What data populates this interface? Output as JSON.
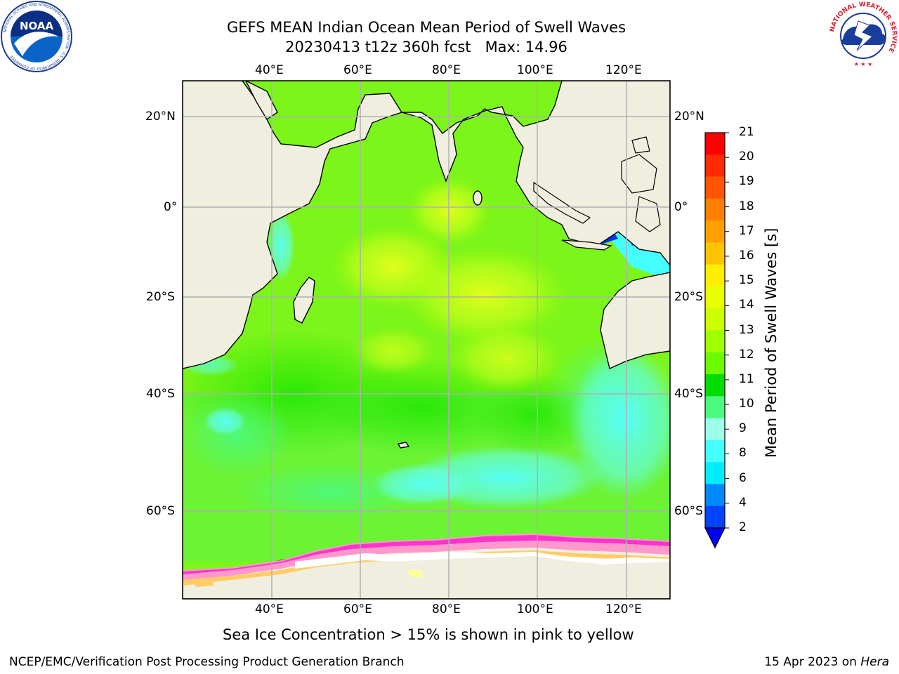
{
  "title": {
    "line1": "GEFS MEAN Indian Ocean Mean Period of Swell Waves",
    "line2": "20230413 t12z 360h fcst   Max: 14.96"
  },
  "map": {
    "lon_labels": [
      "40°E",
      "60°E",
      "80°E",
      "100°E",
      "120°E"
    ],
    "lat_labels": [
      "20°N",
      "0°",
      "20°S",
      "40°S",
      "60°S"
    ],
    "grid": true,
    "land_color": "#efeedf",
    "sea_ice_colors": [
      "#ff33cc",
      "#ff99cc",
      "#ffcc66",
      "#ffff99"
    ]
  },
  "colorbar": {
    "label": "Mean Period of Swell Waves [s]",
    "ticks": [
      "21",
      "20",
      "19",
      "18",
      "17",
      "16",
      "15",
      "14",
      "13",
      "12",
      "11",
      "10",
      "9",
      "8",
      "6",
      "4",
      "2"
    ],
    "colors_top_to_bottom": [
      "#ff0000",
      "#ff2a00",
      "#ff5500",
      "#ff7f00",
      "#ffa000",
      "#ffc400",
      "#ffee00",
      "#e8ff00",
      "#cdff00",
      "#a0ff00",
      "#6cfa00",
      "#00dd00",
      "#4dfa80",
      "#9dffe8",
      "#44ffff",
      "#00eeff",
      "#0088ff",
      "#0044ff"
    ],
    "extend_color": "#0000ff"
  },
  "caption": "Sea Ice Concentration > 15% is shown in pink to yellow",
  "footer": {
    "left": "NCEP/EMC/Verification Post Processing Product Generation Branch",
    "right_prefix": "15 Apr 2023 on ",
    "right_host": "Hera"
  },
  "logos": {
    "noaa_text": "NOAA",
    "noaa_ring_text": "NATIONAL OCEANIC AND ATMOSPHERIC ADMINISTRATION · U.S. DEPARTMENT OF COMMERCE",
    "nws_ring_text": "NATIONAL WEATHER SERVICE"
  }
}
